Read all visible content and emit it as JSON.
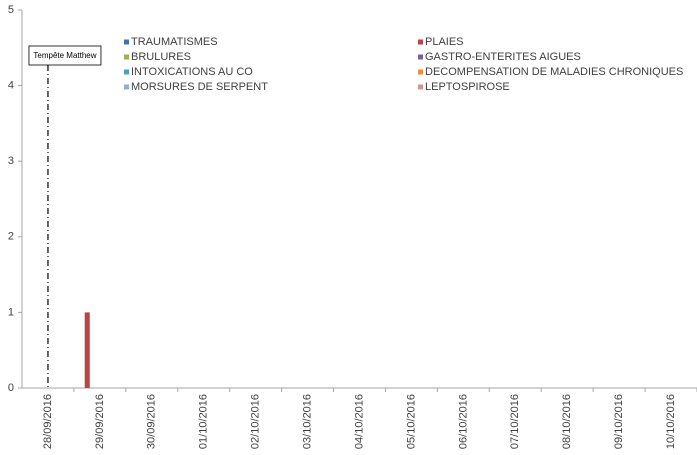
{
  "chart_data": {
    "type": "bar",
    "categories": [
      "28/09/2016",
      "29/09/2016",
      "30/09/2016",
      "01/10/2016",
      "02/10/2016",
      "03/10/2016",
      "04/10/2016",
      "05/10/2016",
      "06/10/2016",
      "07/10/2016",
      "08/10/2016",
      "09/10/2016",
      "10/10/2016"
    ],
    "series": [
      {
        "name": "TRAUMATISMES",
        "color": "#3f6fb4",
        "values": [
          0,
          0,
          0,
          0,
          0,
          0,
          0,
          0,
          0,
          0,
          0,
          0,
          0
        ]
      },
      {
        "name": "PLAIES",
        "color": "#b84543",
        "values": [
          0,
          1,
          0,
          0,
          0,
          0,
          0,
          0,
          0,
          0,
          0,
          0,
          0
        ]
      },
      {
        "name": "BRULURES",
        "color": "#94b54f",
        "values": [
          0,
          0,
          0,
          0,
          0,
          0,
          0,
          0,
          0,
          0,
          0,
          0,
          0
        ]
      },
      {
        "name": "GASTRO-ENTERITES AIGUES",
        "color": "#7a5f9d",
        "values": [
          0,
          0,
          0,
          0,
          0,
          0,
          0,
          0,
          0,
          0,
          0,
          0,
          0
        ]
      },
      {
        "name": "INTOXICATIONS AU CO",
        "color": "#47a2bc",
        "values": [
          0,
          0,
          0,
          0,
          0,
          0,
          0,
          0,
          0,
          0,
          0,
          0,
          0
        ]
      },
      {
        "name": "DECOMPENSATION DE MALADIES CHRONIQUES",
        "color": "#ef8a3e",
        "values": [
          0,
          0,
          0,
          0,
          0,
          0,
          0,
          0,
          0,
          0,
          0,
          0,
          0
        ]
      },
      {
        "name": "MORSURES DE SERPENT",
        "color": "#93aed4",
        "values": [
          0,
          0,
          0,
          0,
          0,
          0,
          0,
          0,
          0,
          0,
          0,
          0,
          0
        ]
      },
      {
        "name": "LEPTOSPIROSE",
        "color": "#d39593",
        "values": [
          0,
          0,
          0,
          0,
          0,
          0,
          0,
          0,
          0,
          0,
          0,
          0,
          0
        ]
      }
    ],
    "ylim": [
      0,
      5
    ],
    "yticks": [
      0,
      1,
      2,
      3,
      4,
      5
    ],
    "grid": false,
    "annotations": [
      {
        "text": "Tempête Matthew",
        "x": "28/09/2016"
      }
    ]
  }
}
